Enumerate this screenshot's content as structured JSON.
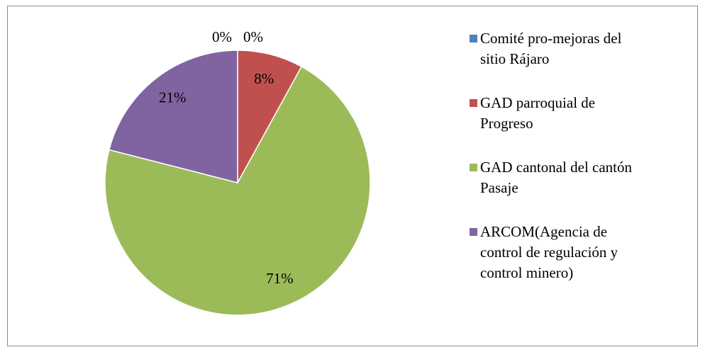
{
  "chart_data": {
    "type": "pie",
    "categories": [
      "Comité pro-mejoras del sitio Rájaro",
      "GAD parroquial de Progreso",
      "GAD cantonal del cantón Pasaje",
      "ARCOM(Agencia de control de regulación y control minero)",
      null
    ],
    "values": [
      0,
      8,
      71,
      21,
      0
    ],
    "value_labels": [
      "0%",
      "8%",
      "71%",
      "21%",
      "0%"
    ],
    "colors": [
      "#4f81bd",
      "#c0504d",
      "#9bbb59",
      "#8064a2",
      "#4bacc6"
    ],
    "legend": "right"
  }
}
